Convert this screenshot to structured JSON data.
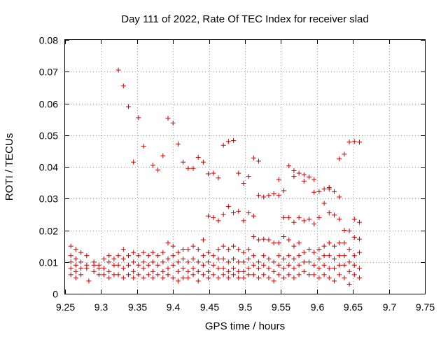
{
  "chart_data": {
    "type": "scatter",
    "title": "Day 111 of 2022, Rate Of TEC Index for receiver slad",
    "xlabel": "GPS time / hours",
    "ylabel": "ROTI / TECUs",
    "xlim": [
      9.25,
      9.75
    ],
    "ylim": [
      0,
      0.08
    ],
    "xticks": [
      "9.25",
      "9.3",
      "9.35",
      "9.4",
      "9.45",
      "9.5",
      "9.55",
      "9.6",
      "9.65",
      "9.7",
      "9.75"
    ],
    "yticks": [
      "0",
      "0.01",
      "0.02",
      "0.03",
      "0.04",
      "0.05",
      "0.06",
      "0.07",
      "0.08"
    ],
    "grid": true,
    "marker": "+",
    "marker_color": "#cc0000",
    "series": [
      {
        "name": "ROTI",
        "points": [
          [
            9.258,
            0.015
          ],
          [
            9.258,
            0.012
          ],
          [
            9.258,
            0.01
          ],
          [
            9.258,
            0.008
          ],
          [
            9.258,
            0.006
          ],
          [
            9.265,
            0.014
          ],
          [
            9.265,
            0.011
          ],
          [
            9.265,
            0.009
          ],
          [
            9.265,
            0.007
          ],
          [
            9.265,
            0.005
          ],
          [
            9.272,
            0.013
          ],
          [
            9.272,
            0.01
          ],
          [
            9.272,
            0.008
          ],
          [
            9.272,
            0.006
          ],
          [
            9.28,
            0.012
          ],
          [
            9.28,
            0.009
          ],
          [
            9.28,
            0.008
          ],
          [
            9.283,
            0.004
          ],
          [
            9.29,
            0.01
          ],
          [
            9.29,
            0.009
          ],
          [
            9.29,
            0.007
          ],
          [
            9.297,
            0.009
          ],
          [
            9.297,
            0.008
          ],
          [
            9.297,
            0.006
          ],
          [
            9.304,
            0.011
          ],
          [
            9.304,
            0.008
          ],
          [
            9.304,
            0.006
          ],
          [
            9.311,
            0.012
          ],
          [
            9.311,
            0.01
          ],
          [
            9.311,
            0.007
          ],
          [
            9.311,
            0.005
          ],
          [
            9.318,
            0.011
          ],
          [
            9.318,
            0.009
          ],
          [
            9.318,
            0.006
          ],
          [
            9.324,
            0.0705
          ],
          [
            9.324,
            0.012
          ],
          [
            9.324,
            0.009
          ],
          [
            9.324,
            0.006
          ],
          [
            9.331,
            0.0655
          ],
          [
            9.331,
            0.014
          ],
          [
            9.331,
            0.011
          ],
          [
            9.331,
            0.008
          ],
          [
            9.331,
            0.005
          ],
          [
            9.338,
            0.059
          ],
          [
            9.338,
            0.012
          ],
          [
            9.338,
            0.009
          ],
          [
            9.338,
            0.006
          ],
          [
            9.345,
            0.0415
          ],
          [
            9.345,
            0.013
          ],
          [
            9.345,
            0.01
          ],
          [
            9.345,
            0.007
          ],
          [
            9.345,
            0.005
          ],
          [
            9.352,
            0.0555
          ],
          [
            9.352,
            0.012
          ],
          [
            9.352,
            0.009
          ],
          [
            9.352,
            0.006
          ],
          [
            9.359,
            0.0465
          ],
          [
            9.359,
            0.013
          ],
          [
            9.359,
            0.01
          ],
          [
            9.359,
            0.008
          ],
          [
            9.359,
            0.005
          ],
          [
            9.366,
            0.012
          ],
          [
            9.366,
            0.009
          ],
          [
            9.366,
            0.006
          ],
          [
            9.372,
            0.0405
          ],
          [
            9.372,
            0.013
          ],
          [
            9.372,
            0.01
          ],
          [
            9.372,
            0.007
          ],
          [
            9.372,
            0.005
          ],
          [
            9.379,
            0.039
          ],
          [
            9.379,
            0.012
          ],
          [
            9.379,
            0.009
          ],
          [
            9.379,
            0.006
          ],
          [
            9.386,
            0.0435
          ],
          [
            9.386,
            0.013
          ],
          [
            9.386,
            0.01
          ],
          [
            9.386,
            0.007
          ],
          [
            9.386,
            0.005
          ],
          [
            9.393,
            0.0553
          ],
          [
            9.393,
            0.016
          ],
          [
            9.393,
            0.011
          ],
          [
            9.393,
            0.008
          ],
          [
            9.393,
            0.006
          ],
          [
            9.4,
            0.0538
          ],
          [
            9.4,
            0.015
          ],
          [
            9.4,
            0.012
          ],
          [
            9.4,
            0.009
          ],
          [
            9.4,
            0.005
          ],
          [
            9.407,
            0.0472
          ],
          [
            9.407,
            0.013
          ],
          [
            9.407,
            0.01
          ],
          [
            9.407,
            0.007
          ],
          [
            9.407,
            0.004
          ],
          [
            9.414,
            0.0415
          ],
          [
            9.414,
            0.014
          ],
          [
            9.414,
            0.011
          ],
          [
            9.414,
            0.008
          ],
          [
            9.414,
            0.005
          ],
          [
            9.421,
            0.0395
          ],
          [
            9.421,
            0.014
          ],
          [
            9.421,
            0.01
          ],
          [
            9.421,
            0.007
          ],
          [
            9.421,
            0.005
          ],
          [
            9.428,
            0.0395
          ],
          [
            9.428,
            0.015
          ],
          [
            9.428,
            0.011
          ],
          [
            9.428,
            0.008
          ],
          [
            9.428,
            0.006
          ],
          [
            9.435,
            0.043
          ],
          [
            9.435,
            0.014
          ],
          [
            9.435,
            0.01
          ],
          [
            9.435,
            0.007
          ],
          [
            9.435,
            0.004
          ],
          [
            9.442,
            0.0415
          ],
          [
            9.442,
            0.017
          ],
          [
            9.442,
            0.012
          ],
          [
            9.442,
            0.009
          ],
          [
            9.442,
            0.006
          ],
          [
            9.449,
            0.0378
          ],
          [
            9.449,
            0.0245
          ],
          [
            9.449,
            0.013
          ],
          [
            9.449,
            0.01
          ],
          [
            9.449,
            0.007
          ],
          [
            9.449,
            0.005
          ],
          [
            9.456,
            0.038
          ],
          [
            9.456,
            0.024
          ],
          [
            9.456,
            0.012
          ],
          [
            9.456,
            0.009
          ],
          [
            9.456,
            0.006
          ],
          [
            9.463,
            0.0365
          ],
          [
            9.463,
            0.023
          ],
          [
            9.463,
            0.014
          ],
          [
            9.463,
            0.011
          ],
          [
            9.463,
            0.008
          ],
          [
            9.463,
            0.005
          ],
          [
            9.47,
            0.0468
          ],
          [
            9.47,
            0.025
          ],
          [
            9.47,
            0.015
          ],
          [
            9.47,
            0.011
          ],
          [
            9.47,
            0.008
          ],
          [
            9.47,
            0.006
          ],
          [
            9.477,
            0.048
          ],
          [
            9.477,
            0.0275
          ],
          [
            9.477,
            0.014
          ],
          [
            9.477,
            0.01
          ],
          [
            9.477,
            0.007
          ],
          [
            9.477,
            0.005
          ],
          [
            9.484,
            0.0483
          ],
          [
            9.484,
            0.0255
          ],
          [
            9.484,
            0.015
          ],
          [
            9.484,
            0.011
          ],
          [
            9.484,
            0.008
          ],
          [
            9.484,
            0.006
          ],
          [
            9.491,
            0.038
          ],
          [
            9.491,
            0.026
          ],
          [
            9.491,
            0.014
          ],
          [
            9.491,
            0.01
          ],
          [
            9.491,
            0.007
          ],
          [
            9.491,
            0.005
          ],
          [
            9.498,
            0.0348
          ],
          [
            9.498,
            0.023
          ],
          [
            9.498,
            0.013
          ],
          [
            9.498,
            0.01
          ],
          [
            9.498,
            0.007
          ],
          [
            9.498,
            0.005
          ],
          [
            9.505,
            0.037
          ],
          [
            9.505,
            0.0255
          ],
          [
            9.505,
            0.014
          ],
          [
            9.505,
            0.011
          ],
          [
            9.505,
            0.008
          ],
          [
            9.505,
            0.006
          ],
          [
            9.512,
            0.0428
          ],
          [
            9.512,
            0.0245
          ],
          [
            9.512,
            0.018
          ],
          [
            9.512,
            0.012
          ],
          [
            9.512,
            0.009
          ],
          [
            9.512,
            0.006
          ],
          [
            9.519,
            0.0418
          ],
          [
            9.519,
            0.031
          ],
          [
            9.519,
            0.017
          ],
          [
            9.519,
            0.01
          ],
          [
            9.519,
            0.008
          ],
          [
            9.519,
            0.005
          ],
          [
            9.526,
            0.0305
          ],
          [
            9.526,
            0.0172
          ],
          [
            9.526,
            0.012
          ],
          [
            9.526,
            0.009
          ],
          [
            9.526,
            0.006
          ],
          [
            9.533,
            0.031
          ],
          [
            9.533,
            0.017
          ],
          [
            9.533,
            0.011
          ],
          [
            9.533,
            0.008
          ],
          [
            9.533,
            0.005
          ],
          [
            9.54,
            0.0315
          ],
          [
            9.54,
            0.016
          ],
          [
            9.54,
            0.01
          ],
          [
            9.54,
            0.007
          ],
          [
            9.54,
            0.004
          ],
          [
            9.547,
            0.036
          ],
          [
            9.547,
            0.031
          ],
          [
            9.547,
            0.016
          ],
          [
            9.547,
            0.012
          ],
          [
            9.547,
            0.009
          ],
          [
            9.547,
            0.006
          ],
          [
            9.554,
            0.0325
          ],
          [
            9.554,
            0.024
          ],
          [
            9.554,
            0.018
          ],
          [
            9.554,
            0.011
          ],
          [
            9.554,
            0.008
          ],
          [
            9.554,
            0.005
          ],
          [
            9.561,
            0.0403
          ],
          [
            9.561,
            0.024
          ],
          [
            9.561,
            0.017
          ],
          [
            9.561,
            0.012
          ],
          [
            9.561,
            0.009
          ],
          [
            9.561,
            0.006
          ],
          [
            9.568,
            0.0388
          ],
          [
            9.568,
            0.037
          ],
          [
            9.568,
            0.0225
          ],
          [
            9.568,
            0.015
          ],
          [
            9.568,
            0.011
          ],
          [
            9.568,
            0.008
          ],
          [
            9.568,
            0.005
          ],
          [
            9.575,
            0.038
          ],
          [
            9.575,
            0.024
          ],
          [
            9.575,
            0.016
          ],
          [
            9.575,
            0.012
          ],
          [
            9.575,
            0.009
          ],
          [
            9.575,
            0.006
          ],
          [
            9.582,
            0.0375
          ],
          [
            9.582,
            0.0355
          ],
          [
            9.582,
            0.023
          ],
          [
            9.582,
            0.013
          ],
          [
            9.582,
            0.01
          ],
          [
            9.582,
            0.007
          ],
          [
            9.589,
            0.0368
          ],
          [
            9.589,
            0.0235
          ],
          [
            9.589,
            0.014
          ],
          [
            9.589,
            0.01
          ],
          [
            9.589,
            0.006
          ],
          [
            9.596,
            0.036
          ],
          [
            9.596,
            0.032
          ],
          [
            9.596,
            0.022
          ],
          [
            9.596,
            0.013
          ],
          [
            9.596,
            0.009
          ],
          [
            9.596,
            0.006
          ],
          [
            9.603,
            0.0322
          ],
          [
            9.603,
            0.024
          ],
          [
            9.603,
            0.014
          ],
          [
            9.603,
            0.011
          ],
          [
            9.603,
            0.008
          ],
          [
            9.603,
            0.005
          ],
          [
            9.61,
            0.033
          ],
          [
            9.61,
            0.0285
          ],
          [
            9.61,
            0.015
          ],
          [
            9.61,
            0.012
          ],
          [
            9.61,
            0.009
          ],
          [
            9.61,
            0.006
          ],
          [
            9.617,
            0.0335
          ],
          [
            9.617,
            0.033
          ],
          [
            9.617,
            0.0255
          ],
          [
            9.617,
            0.016
          ],
          [
            9.617,
            0.012
          ],
          [
            9.617,
            0.008
          ],
          [
            9.617,
            0.005
          ],
          [
            9.624,
            0.0322
          ],
          [
            9.624,
            0.0248
          ],
          [
            9.624,
            0.015
          ],
          [
            9.624,
            0.011
          ],
          [
            9.624,
            0.008
          ],
          [
            9.624,
            0.004
          ],
          [
            9.631,
            0.0425
          ],
          [
            9.631,
            0.0305
          ],
          [
            9.631,
            0.0235
          ],
          [
            9.631,
            0.016
          ],
          [
            9.631,
            0.012
          ],
          [
            9.631,
            0.009
          ],
          [
            9.631,
            0.006
          ],
          [
            9.638,
            0.044
          ],
          [
            9.638,
            0.02
          ],
          [
            9.638,
            0.016
          ],
          [
            9.638,
            0.012
          ],
          [
            9.638,
            0.009
          ],
          [
            9.638,
            0.005
          ],
          [
            9.645,
            0.0478
          ],
          [
            9.645,
            0.0198
          ],
          [
            9.645,
            0.014
          ],
          [
            9.645,
            0.01
          ],
          [
            9.645,
            0.007
          ],
          [
            9.645,
            0.003
          ],
          [
            9.652,
            0.048
          ],
          [
            9.652,
            0.0235
          ],
          [
            9.652,
            0.0178
          ],
          [
            9.652,
            0.012
          ],
          [
            9.652,
            0.009
          ],
          [
            9.652,
            0.006
          ],
          [
            9.659,
            0.0478
          ],
          [
            9.659,
            0.0225
          ],
          [
            9.659,
            0.0172
          ],
          [
            9.659,
            0.013
          ],
          [
            9.659,
            0.008
          ],
          [
            9.659,
            0.005
          ]
        ]
      }
    ]
  }
}
